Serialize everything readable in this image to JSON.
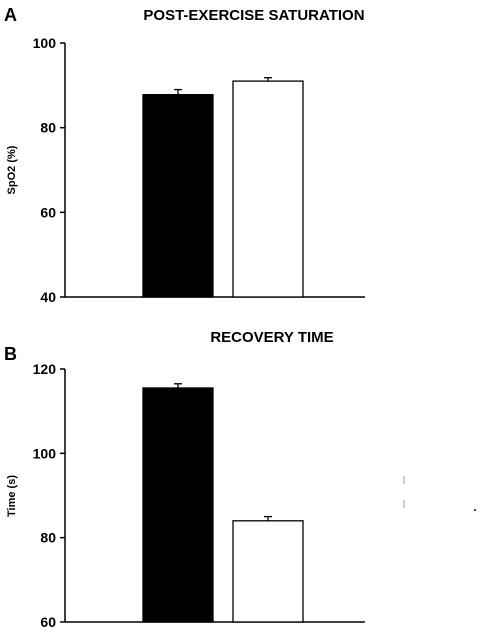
{
  "chart_data": [
    {
      "type": "bar",
      "panel": "A",
      "title": "POST-EXERCISE SATURATION",
      "xlabel": "",
      "ylabel": "SpO2 (%)",
      "ylim": [
        40,
        100
      ],
      "yticks": [
        40,
        60,
        80,
        100
      ],
      "categories": [
        "",
        ""
      ],
      "values": [
        87.8,
        91.0
      ],
      "errors": [
        1.2,
        0.8
      ],
      "bar_colors": [
        "#000000",
        "#ffffff"
      ],
      "grid": false
    },
    {
      "type": "bar",
      "panel": "B",
      "title": "RECOVERY TIME",
      "xlabel": "",
      "ylabel": "Time (s)",
      "ylim": [
        60,
        120
      ],
      "yticks": [
        60,
        80,
        100,
        120
      ],
      "categories": [
        "",
        ""
      ],
      "values": [
        115.5,
        84.0
      ],
      "errors": [
        1.0,
        1.0
      ],
      "bar_colors": [
        "#000000",
        "#ffffff"
      ],
      "grid": false
    }
  ]
}
